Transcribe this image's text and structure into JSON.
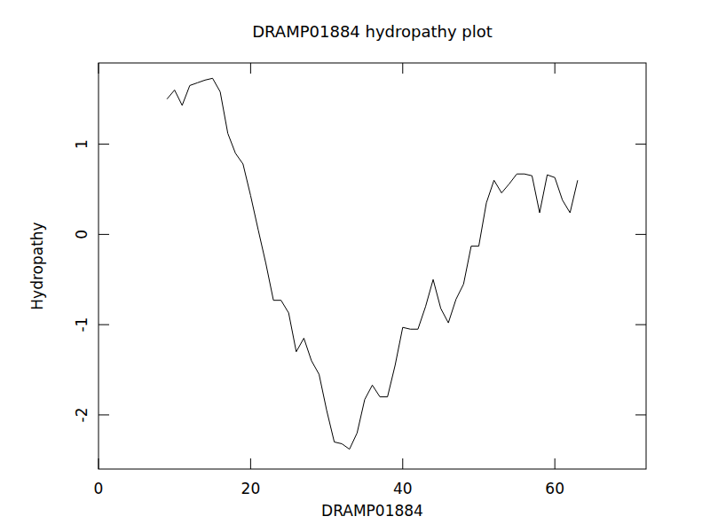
{
  "chart_data": {
    "type": "line",
    "title": "DRAMP01884 hydropathy plot",
    "x_label": "DRAMP01884",
    "y_label": "Hydropathy",
    "x": [
      9,
      10,
      11,
      12,
      13,
      14,
      15,
      16,
      17,
      18,
      19,
      20,
      21,
      22,
      23,
      24,
      25,
      26,
      27,
      28,
      29,
      30,
      31,
      32,
      33,
      34,
      35,
      36,
      37,
      38,
      39,
      40,
      41,
      42,
      43,
      44,
      45,
      46,
      47,
      48,
      49,
      50,
      51,
      52,
      53,
      54,
      55,
      56,
      57,
      58,
      59,
      60,
      61,
      62,
      63
    ],
    "series": [
      {
        "name": "Hydropathy",
        "color": "#000000",
        "values": [
          1.5,
          1.6,
          1.43,
          1.65,
          1.68,
          1.71,
          1.73,
          1.58,
          1.12,
          0.9,
          0.78,
          0.43,
          0.05,
          -0.32,
          -0.73,
          -0.73,
          -0.87,
          -1.3,
          -1.15,
          -1.4,
          -1.55,
          -1.95,
          -2.3,
          -2.32,
          -2.38,
          -2.2,
          -1.83,
          -1.67,
          -1.8,
          -1.8,
          -1.45,
          -1.03,
          -1.05,
          -1.05,
          -0.8,
          -0.5,
          -0.82,
          -0.98,
          -0.72,
          -0.55,
          -0.13,
          -0.13,
          0.35,
          0.6,
          0.46,
          0.56,
          0.67,
          0.67,
          0.65,
          0.24,
          0.66,
          0.63,
          0.38,
          0.24,
          0.6
        ]
      }
    ],
    "xlim": [
      0,
      72
    ],
    "ylim": [
      -2.6,
      1.9
    ],
    "xticks": [
      0,
      20,
      40,
      60
    ],
    "yticks": [
      -2,
      -1,
      0,
      1
    ],
    "grid": false
  }
}
